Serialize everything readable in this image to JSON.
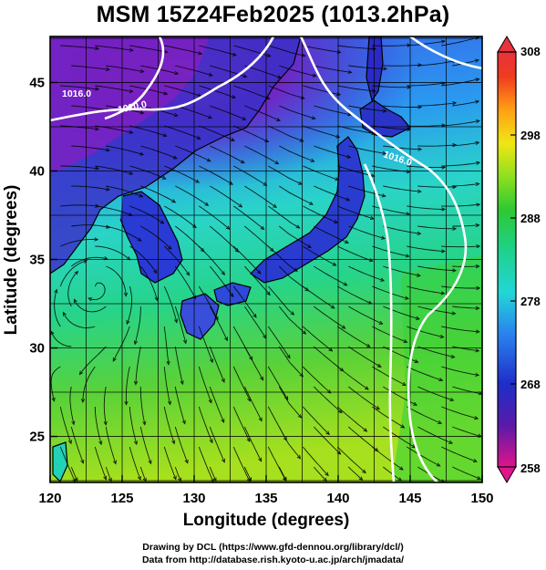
{
  "title": "MSM 15Z24Feb2025 (1013.2hPa)",
  "map": {
    "xlabel": "Longitude (degrees)",
    "ylabel": "Latitude  (degrees)",
    "xticks": [
      "120",
      "125",
      "130",
      "135",
      "140",
      "145",
      "150"
    ],
    "yticks": [
      "25",
      "30",
      "35",
      "40",
      "45"
    ],
    "lon_range": [
      120,
      150
    ],
    "lat_range": [
      22.4,
      47.6
    ],
    "isobars": [
      {
        "label": "1016.0"
      },
      {
        "label": "1020.0"
      },
      {
        "label": "1016.0"
      }
    ],
    "colors": {
      "coast": "#000000",
      "isobar": "#ffffff",
      "grid": "#000000"
    }
  },
  "colorbar": {
    "ticks": [
      "308",
      "298",
      "288",
      "278",
      "268",
      "258"
    ],
    "range": [
      258,
      308
    ]
  },
  "footer": {
    "line1": "Drawing by DCL (https://www.gfd-dennou.org/library/dcl/)",
    "line2": "Data from http://database.rish.kyoto-u.ac.jp/arch/jmadata/"
  }
}
